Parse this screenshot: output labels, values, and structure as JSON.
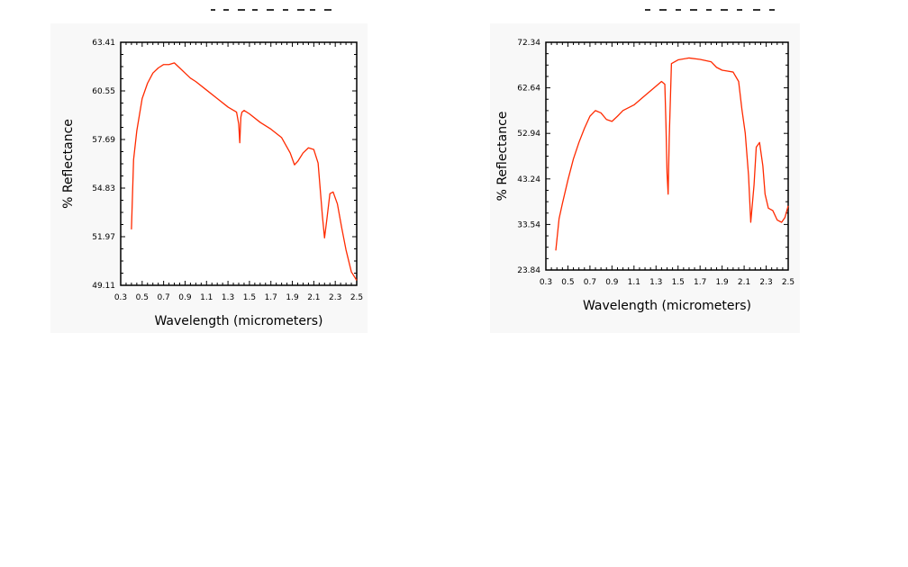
{
  "colors": {
    "line": "#ff2a00",
    "frame": "#000000",
    "panel": "#f8f8f8",
    "text": "#000000"
  },
  "chart_data": [
    {
      "type": "line",
      "title": "",
      "xlabel": "Wavelength (micrometers)",
      "ylabel": "% Reflectance",
      "xlim": [
        0.3,
        2.5
      ],
      "ylim": [
        49.11,
        63.41
      ],
      "xticks": [
        "0.3",
        "0.5",
        "0.7",
        "0.9",
        "1.1",
        "1.3",
        "1.5",
        "1.7",
        "1.9",
        "2.1",
        "2.3",
        "2.5"
      ],
      "yticks": [
        "49.11",
        "51.97",
        "54.83",
        "57.69",
        "60.55",
        "63.41"
      ],
      "grid": false,
      "series": [
        {
          "x": [
            0.4,
            0.42,
            0.45,
            0.5,
            0.55,
            0.6,
            0.65,
            0.7,
            0.75,
            0.8,
            0.85,
            0.9,
            0.95,
            1.0,
            1.1,
            1.2,
            1.3,
            1.38,
            1.4,
            1.41,
            1.42,
            1.43,
            1.45,
            1.5,
            1.6,
            1.7,
            1.8,
            1.88,
            1.92,
            1.95,
            2.0,
            2.05,
            2.1,
            2.14,
            2.18,
            2.2,
            2.22,
            2.25,
            2.28,
            2.32,
            2.36,
            2.4,
            2.45,
            2.5
          ],
          "y": [
            52.4,
            56.5,
            58.2,
            60.1,
            61.0,
            61.6,
            61.9,
            62.1,
            62.1,
            62.2,
            61.9,
            61.6,
            61.3,
            61.1,
            60.6,
            60.1,
            59.6,
            59.3,
            58.6,
            57.5,
            59.0,
            59.3,
            59.4,
            59.2,
            58.7,
            58.3,
            57.8,
            56.9,
            56.2,
            56.4,
            56.9,
            57.2,
            57.1,
            56.3,
            53.2,
            51.9,
            52.9,
            54.5,
            54.6,
            53.9,
            52.5,
            51.2,
            49.9,
            49.4
          ]
        }
      ]
    },
    {
      "type": "line",
      "title": "",
      "xlabel": "Wavelength (micrometers)",
      "ylabel": "% Reflectance",
      "xlim": [
        0.3,
        2.5
      ],
      "ylim": [
        23.84,
        72.34
      ],
      "xticks": [
        "0.3",
        "0.5",
        "0.7",
        "0.9",
        "1.1",
        "1.3",
        "1.5",
        "1.7",
        "1.9",
        "2.1",
        "2.3",
        "2.5"
      ],
      "yticks": [
        "23.84",
        "33.54",
        "43.24",
        "52.94",
        "62.64",
        "72.34"
      ],
      "grid": false,
      "series": [
        {
          "x": [
            0.39,
            0.42,
            0.45,
            0.5,
            0.55,
            0.6,
            0.65,
            0.7,
            0.75,
            0.8,
            0.85,
            0.9,
            0.95,
            1.0,
            1.1,
            1.2,
            1.3,
            1.35,
            1.38,
            1.39,
            1.4,
            1.41,
            1.42,
            1.44,
            1.5,
            1.6,
            1.7,
            1.8,
            1.85,
            1.9,
            1.95,
            2.0,
            2.05,
            2.08,
            2.11,
            2.14,
            2.16,
            2.19,
            2.21,
            2.24,
            2.27,
            2.29,
            2.32,
            2.36,
            2.4,
            2.44,
            2.47,
            2.5
          ],
          "y": [
            28.0,
            34.8,
            38.0,
            43.0,
            47.5,
            51.0,
            54.0,
            56.6,
            57.8,
            57.3,
            55.9,
            55.5,
            56.6,
            57.8,
            59.0,
            61.0,
            63.0,
            64.0,
            63.4,
            55.0,
            44.5,
            40.0,
            52.0,
            67.8,
            68.6,
            69.0,
            68.7,
            68.2,
            67.0,
            66.4,
            66.2,
            66.0,
            64.0,
            58.0,
            53.0,
            44.0,
            34.0,
            42.0,
            50.0,
            51.0,
            46.0,
            40.0,
            37.0,
            36.5,
            34.5,
            34.0,
            35.0,
            37.5
          ]
        }
      ]
    }
  ]
}
